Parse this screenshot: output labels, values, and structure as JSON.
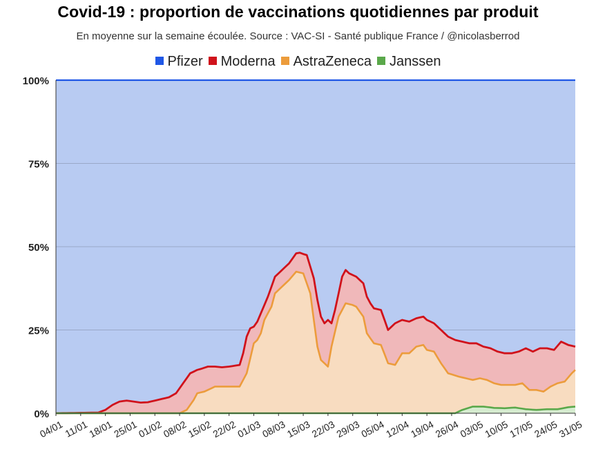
{
  "title": "Covid-19 : proportion de vaccinations quotidiennes par produit",
  "subtitle": "En moyenne sur la semaine écoulée. Source : VAC-SI - Santé publique France / @nicolasberrod",
  "chart_data": {
    "type": "area",
    "stacked": true,
    "legend_position": "top",
    "ylim": [
      0,
      100
    ],
    "y_ticks": [
      0,
      25,
      50,
      75,
      100
    ],
    "y_tick_labels": [
      "0%",
      "25%",
      "50%",
      "75%",
      "100%"
    ],
    "x_tick_labels": [
      "04/01",
      "11/01",
      "18/01",
      "25/01",
      "01/02",
      "08/02",
      "15/02",
      "22/02",
      "01/03",
      "08/03",
      "15/03",
      "22/03",
      "29/03",
      "05/04",
      "12/04",
      "19/04",
      "26/04",
      "03/05",
      "10/05",
      "17/05",
      "24/05",
      "31/05"
    ],
    "x_day_count": 148,
    "cumulative": {
      "Janssen": {
        "x": [
          0,
          113,
          115,
          118,
          121,
          124,
          127,
          130,
          133,
          136,
          139,
          142,
          145,
          147
        ],
        "y": [
          0,
          0,
          1,
          2,
          2,
          1.6,
          1.5,
          1.7,
          1.2,
          1,
          1.2,
          1.2,
          1.8,
          2
        ]
      },
      "AstraZeneca": {
        "x": [
          0,
          35,
          37,
          39,
          40,
          42,
          44,
          45,
          47,
          49,
          52,
          54,
          56,
          57,
          58,
          59,
          61,
          62,
          64,
          66,
          68,
          70,
          72,
          73,
          74,
          75,
          77,
          78,
          80,
          82,
          84,
          85,
          87,
          88,
          90,
          92,
          94,
          96,
          98,
          100,
          102,
          104,
          105,
          107,
          109,
          111,
          114,
          116,
          118,
          120,
          122,
          124,
          126,
          128,
          130,
          132,
          134,
          136,
          138,
          140,
          142,
          144,
          146,
          147
        ],
        "y": [
          0,
          0,
          1,
          4,
          6,
          6.5,
          7.5,
          8,
          8,
          8,
          8,
          12,
          21,
          22,
          24,
          28,
          32,
          36,
          38,
          40,
          42.5,
          42,
          36,
          28,
          20,
          16,
          14,
          20,
          29,
          33,
          32.5,
          32,
          29,
          24,
          21,
          20.5,
          15,
          14.5,
          18,
          18,
          20,
          20.5,
          19,
          18.5,
          15,
          12,
          11,
          10.5,
          10,
          10.5,
          10,
          9,
          8.5,
          8.5,
          8.5,
          9,
          7,
          7,
          6.5,
          8,
          9,
          9.5,
          12,
          13
        ]
      },
      "Moderna": {
        "x": [
          0,
          12,
          14,
          16,
          18,
          20,
          22,
          24,
          26,
          28,
          30,
          32,
          34,
          36,
          38,
          40,
          41,
          43,
          45,
          47,
          49,
          52,
          53,
          54,
          55,
          56,
          57,
          58,
          60,
          62,
          63,
          64,
          66,
          68,
          69,
          70,
          71,
          72,
          73,
          74,
          75,
          76,
          77,
          78,
          79,
          80,
          81,
          82,
          83,
          84,
          85,
          87,
          88,
          89,
          90,
          92,
          94,
          96,
          98,
          100,
          102,
          104,
          105,
          107,
          109,
          111,
          113,
          115,
          117,
          119,
          121,
          123,
          125,
          127,
          129,
          131,
          133,
          135,
          137,
          139,
          141,
          143,
          145,
          147
        ],
        "y": [
          0,
          0.2,
          1,
          2.5,
          3.5,
          3.8,
          3.5,
          3.2,
          3.3,
          3.8,
          4.3,
          4.8,
          6,
          9,
          12,
          13,
          13.3,
          14,
          14,
          13.8,
          14,
          14.5,
          18,
          23,
          25.5,
          26,
          27.5,
          30,
          35,
          41,
          42,
          43,
          45,
          48,
          48.2,
          47.8,
          47.5,
          44,
          40.5,
          34,
          29,
          27,
          28,
          27,
          31,
          36,
          41,
          43,
          42,
          41.5,
          41,
          39,
          35,
          33,
          31.5,
          31,
          25,
          27,
          28,
          27.5,
          28.5,
          29,
          28,
          27,
          25,
          23,
          22,
          21.5,
          21,
          21,
          20,
          19.5,
          18.5,
          18,
          18,
          18.5,
          19.5,
          18.5,
          19.5,
          19.5,
          19,
          21.5,
          20.5,
          20
        ]
      }
    },
    "series": [
      {
        "name": "Pfizer",
        "color": "#1f57e6",
        "fill": "#b8cbf2"
      },
      {
        "name": "Moderna",
        "color": "#d0121b",
        "fill": "#f0b8ba"
      },
      {
        "name": "AstraZeneca",
        "color": "#ec9c3c",
        "fill": "#f8dcc0"
      },
      {
        "name": "Janssen",
        "color": "#5aa84a",
        "fill": "#d6ecd0"
      }
    ]
  }
}
